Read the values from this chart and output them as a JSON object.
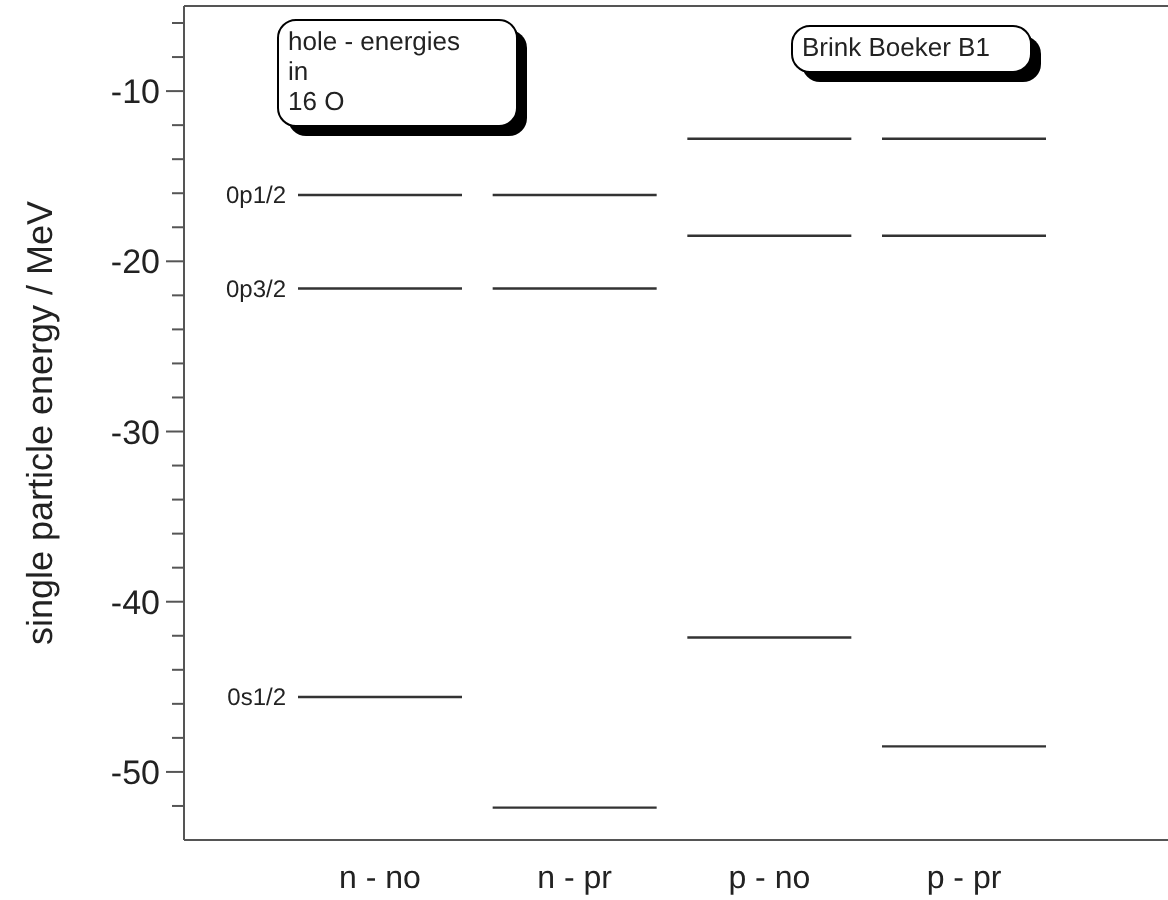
{
  "chart_data": {
    "type": "box",
    "ylabel": "single particle energy / MeV",
    "categories": [
      "n - no",
      "n - pr",
      "p - no",
      "p - pr"
    ],
    "ylim": [
      -54,
      -5
    ],
    "yticks": [
      {
        "value": -6,
        "label": null
      },
      {
        "value": -8,
        "label": null
      },
      -10,
      {
        "value": -12,
        "label": null
      },
      {
        "value": -14,
        "label": null
      },
      {
        "value": -16,
        "label": null
      },
      {
        "value": -18,
        "label": null
      },
      -20,
      {
        "value": -22,
        "label": null
      },
      {
        "value": -24,
        "label": null
      },
      {
        "value": -26,
        "label": null
      },
      {
        "value": -28,
        "label": null
      },
      -30,
      {
        "value": -32,
        "label": null
      },
      {
        "value": -34,
        "label": null
      },
      {
        "value": -36,
        "label": null
      },
      {
        "value": -38,
        "label": null
      },
      -40,
      {
        "value": -42,
        "label": null
      },
      {
        "value": -44,
        "label": null
      },
      {
        "value": -46,
        "label": null
      },
      {
        "value": -48,
        "label": null
      },
      -50,
      {
        "value": -52,
        "label": null
      }
    ],
    "series": [
      {
        "name": "0p1/2",
        "color": "#333333",
        "boxes": [
          {
            "low": -16.1,
            "q1": -16.1,
            "median": -16.1,
            "q3": -16.1,
            "high": -16.1
          },
          {
            "low": -16.1,
            "q1": -16.1,
            "median": -16.1,
            "q3": -16.1,
            "high": -16.1
          },
          {
            "low": -12.8,
            "q1": -12.8,
            "median": -12.8,
            "q3": -12.8,
            "high": -12.8
          },
          {
            "low": -12.8,
            "q1": -12.8,
            "median": -12.8,
            "q3": -12.8,
            "high": -12.8
          }
        ]
      },
      {
        "name": "0p3/2",
        "color": "#333333",
        "boxes": [
          {
            "low": -21.6,
            "q1": -21.6,
            "median": -21.6,
            "q3": -21.6,
            "high": -21.6
          },
          {
            "low": -21.6,
            "q1": -21.6,
            "median": -21.6,
            "q3": -21.6,
            "high": -21.6
          },
          {
            "low": -18.5,
            "q1": -18.5,
            "median": -18.5,
            "q3": -18.5,
            "high": -18.5
          },
          {
            "low": -18.5,
            "q1": -18.5,
            "median": -18.5,
            "q3": -18.5,
            "high": -18.5
          }
        ]
      },
      {
        "name": "0s1/2",
        "color": "#333333",
        "boxes": [
          {
            "low": -45.6,
            "q1": -45.6,
            "median": -45.6,
            "q3": -45.6,
            "high": -45.6
          },
          {
            "low": -52.1,
            "q1": -52.1,
            "median": -52.1,
            "q3": -52.1,
            "high": -52.1
          },
          {
            "low": -42.1,
            "q1": -42.1,
            "median": -42.1,
            "q3": -42.1,
            "high": -42.1
          },
          {
            "low": -48.5,
            "q1": -48.5,
            "median": -48.5,
            "q3": -48.5,
            "high": -48.5
          }
        ]
      }
    ],
    "annotations": [
      "hole - energies\nin\n16 O",
      "Brink Boeker B1"
    ]
  }
}
